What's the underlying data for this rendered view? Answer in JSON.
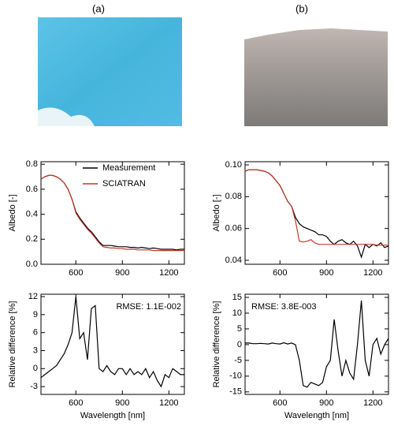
{
  "panel_labels": [
    "(a)",
    "(b)"
  ],
  "chart_data": [
    {
      "type": "line",
      "ylabel": "Albedo [-]",
      "xlim": [
        375,
        1300
      ],
      "ylim": [
        0,
        0.82
      ],
      "xticks": [
        600,
        900,
        1200
      ],
      "yticks": [
        {
          "value": 0,
          "label": "0.0"
        },
        {
          "value": 0.2,
          "label": "0.2"
        },
        {
          "value": 0.4,
          "label": "0.4"
        },
        {
          "value": 0.6,
          "label": "0.6"
        },
        {
          "value": 0.8,
          "label": "0.8"
        }
      ],
      "legend": "upper right",
      "x": [
        375,
        400,
        425,
        450,
        475,
        500,
        525,
        550,
        575,
        600,
        625,
        650,
        675,
        700,
        725,
        750,
        775,
        800,
        825,
        850,
        875,
        900,
        925,
        950,
        975,
        1000,
        1025,
        1050,
        1075,
        1100,
        1125,
        1150,
        1175,
        1200,
        1225,
        1250,
        1275,
        1300
      ],
      "series": [
        {
          "name": "Measurement",
          "color": "#000000",
          "values": [
            0.68,
            0.7,
            0.71,
            0.71,
            0.7,
            0.68,
            0.65,
            0.6,
            0.52,
            0.42,
            0.37,
            0.33,
            0.29,
            0.26,
            0.22,
            0.18,
            0.15,
            0.15,
            0.15,
            0.145,
            0.14,
            0.14,
            0.14,
            0.135,
            0.135,
            0.13,
            0.135,
            0.13,
            0.125,
            0.13,
            0.125,
            0.12,
            0.12,
            0.12,
            0.12,
            0.115,
            0.12,
            0.12
          ]
        },
        {
          "name": "SCIATRAN",
          "color": "#c0392b",
          "values": [
            0.68,
            0.7,
            0.71,
            0.71,
            0.7,
            0.68,
            0.65,
            0.6,
            0.52,
            0.41,
            0.36,
            0.32,
            0.28,
            0.25,
            0.21,
            0.17,
            0.14,
            0.135,
            0.13,
            0.13,
            0.125,
            0.125,
            0.12,
            0.12,
            0.12,
            0.115,
            0.115,
            0.115,
            0.115,
            0.11,
            0.11,
            0.11,
            0.11,
            0.11,
            0.11,
            0.11,
            0.11,
            0.11
          ]
        }
      ]
    },
    {
      "type": "line",
      "ylabel": "Albedo [-]",
      "xlim": [
        375,
        1300
      ],
      "ylim": [
        0.0375,
        0.102
      ],
      "xticks": [
        600,
        900,
        1200
      ],
      "yticks": [
        {
          "value": 0.04,
          "label": "0.04"
        },
        {
          "value": 0.06,
          "label": "0.06"
        },
        {
          "value": 0.08,
          "label": "0.08"
        },
        {
          "value": 0.1,
          "label": "0.10"
        }
      ],
      "x": [
        375,
        400,
        425,
        450,
        475,
        500,
        525,
        550,
        575,
        600,
        625,
        650,
        675,
        700,
        725,
        750,
        775,
        800,
        825,
        850,
        875,
        900,
        925,
        950,
        975,
        1000,
        1025,
        1050,
        1075,
        1100,
        1125,
        1150,
        1175,
        1200,
        1225,
        1250,
        1275,
        1300
      ],
      "series": [
        {
          "name": "Measurement",
          "color": "#000000",
          "values": [
            0.096,
            0.097,
            0.097,
            0.097,
            0.0965,
            0.096,
            0.095,
            0.093,
            0.09,
            0.087,
            0.082,
            0.077,
            0.074,
            0.067,
            0.063,
            0.061,
            0.06,
            0.059,
            0.058,
            0.056,
            0.056,
            0.055,
            0.052,
            0.05,
            0.052,
            0.053,
            0.051,
            0.05,
            0.052,
            0.049,
            0.042,
            0.05,
            0.048,
            0.05,
            0.049,
            0.051,
            0.048,
            0.049
          ]
        },
        {
          "name": "SCIATRAN",
          "color": "#c0392b",
          "values": [
            0.096,
            0.097,
            0.097,
            0.097,
            0.0965,
            0.096,
            0.095,
            0.093,
            0.09,
            0.087,
            0.082,
            0.077,
            0.074,
            0.065,
            0.052,
            0.0515,
            0.052,
            0.053,
            0.051,
            0.05,
            0.05,
            0.05,
            0.05,
            0.05,
            0.05,
            0.05,
            0.05,
            0.05,
            0.05,
            0.05,
            0.05,
            0.05,
            0.05,
            0.05,
            0.0495,
            0.0495,
            0.0495,
            0.0495
          ]
        }
      ]
    },
    {
      "type": "line",
      "xlabel": "Wavelength [nm]",
      "ylabel": "Relative difference [%]",
      "annotation": "RMSE: 1.1E-002",
      "xlim": [
        375,
        1300
      ],
      "ylim": [
        -4.3,
        12.4
      ],
      "xticks": [
        600,
        900,
        1200
      ],
      "yticks": [
        -3,
        0,
        3,
        6,
        9,
        12
      ],
      "x": [
        375,
        400,
        425,
        450,
        475,
        500,
        525,
        550,
        575,
        600,
        625,
        650,
        675,
        700,
        725,
        750,
        775,
        800,
        825,
        850,
        875,
        900,
        925,
        950,
        975,
        1000,
        1025,
        1050,
        1075,
        1100,
        1125,
        1150,
        1175,
        1200,
        1225,
        1250,
        1275,
        1300
      ],
      "series": [
        {
          "name": "Relative difference",
          "color": "#000000",
          "values": [
            -1.5,
            -1,
            -0.5,
            0,
            0.5,
            1.5,
            2.5,
            4,
            6,
            12,
            5,
            6,
            1.5,
            10,
            10.5,
            0,
            -0.5,
            0.5,
            -0.5,
            -1,
            0,
            0,
            -1,
            0,
            -1,
            -0.5,
            -1,
            0,
            -1.5,
            -0.5,
            -2,
            -3,
            -1,
            -1.5,
            0,
            -0.5,
            -1,
            -1
          ]
        }
      ]
    },
    {
      "type": "line",
      "xlabel": "Wavelength [nm]",
      "ylabel": "Relative difference [%]",
      "annotation": "RMSE: 3.8E-003",
      "xlim": [
        375,
        1300
      ],
      "ylim": [
        -15.8,
        16
      ],
      "xticks": [
        600,
        900,
        1200
      ],
      "yticks": [
        -15,
        -10,
        -5,
        0,
        5,
        10,
        15
      ],
      "x": [
        375,
        400,
        425,
        450,
        475,
        500,
        525,
        550,
        575,
        600,
        625,
        650,
        675,
        700,
        725,
        750,
        775,
        800,
        825,
        850,
        875,
        900,
        925,
        950,
        975,
        1000,
        1025,
        1050,
        1075,
        1100,
        1125,
        1150,
        1175,
        1200,
        1225,
        1250,
        1275,
        1300
      ],
      "series": [
        {
          "name": "Relative difference",
          "color": "#000000",
          "values": [
            0.5,
            0.5,
            0.3,
            0.3,
            0.4,
            0.3,
            0.2,
            0.5,
            0.3,
            0.2,
            0.6,
            0.2,
            0.5,
            0,
            -5,
            -13,
            -13.5,
            -12,
            -12.5,
            -13,
            -12,
            -7,
            -5,
            8,
            -2,
            -10,
            -5,
            -9,
            -11,
            0,
            14,
            -5,
            -10,
            0,
            2,
            -3,
            0,
            2
          ]
        }
      ]
    }
  ]
}
